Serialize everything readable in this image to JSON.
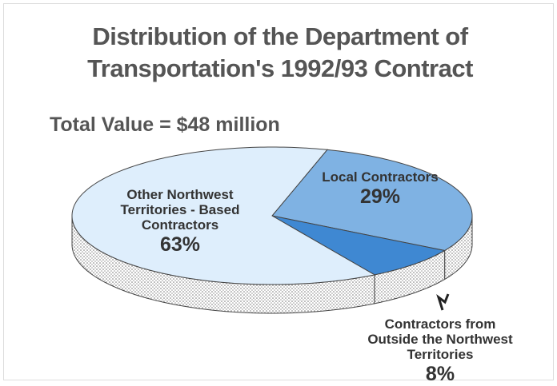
{
  "chart_data": {
    "type": "pie",
    "title": "Distribution of the Department of Transportation's 1992/93 Contract",
    "subtitle": "Total Value = $48 million",
    "categories": [
      "Local Contractors",
      "Contractors from Outside the Northwest Territories",
      "Other Northwest Territories - Based Contractors"
    ],
    "values": [
      29,
      8,
      63
    ],
    "value_labels": [
      "29%",
      "8%",
      "63%"
    ],
    "colors": [
      "#7fb2e3",
      "#3f88d2",
      "#deeefc"
    ]
  }
}
